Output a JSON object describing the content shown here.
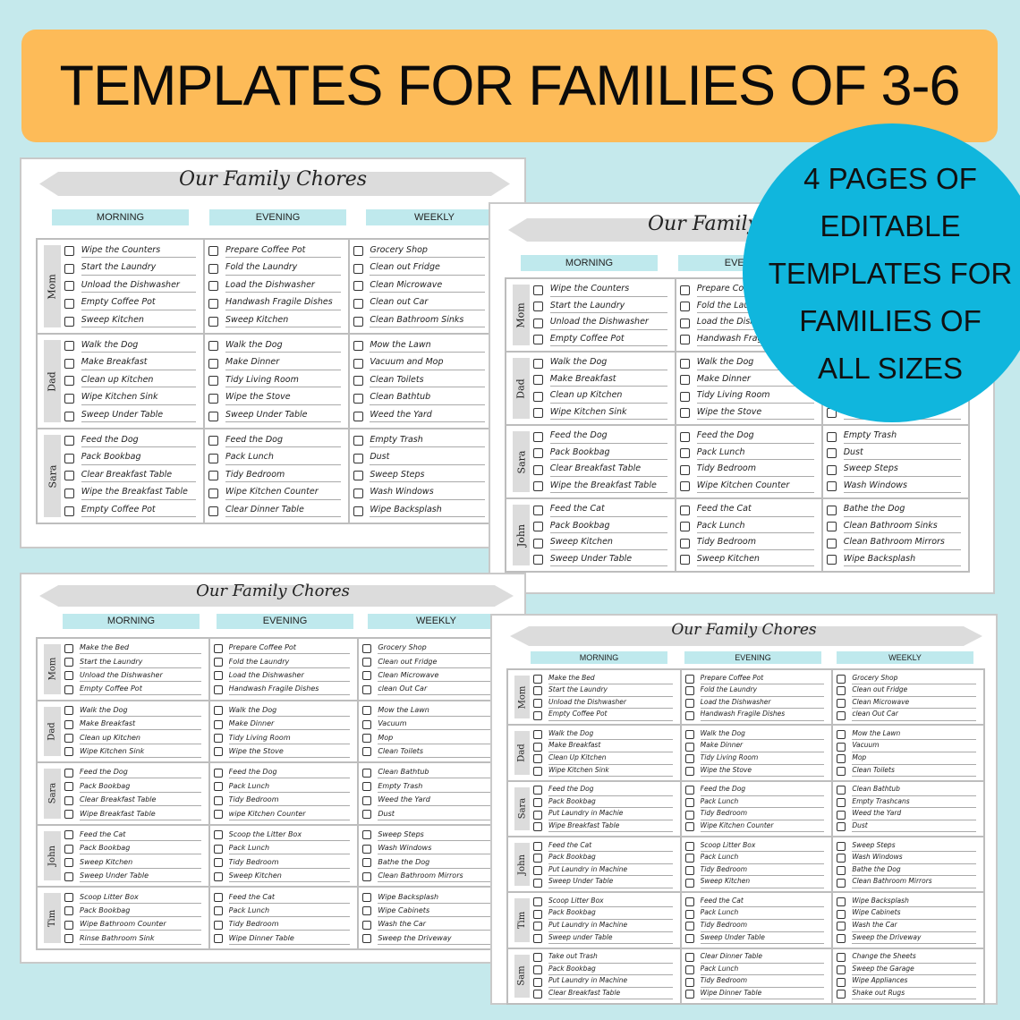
{
  "banner": {
    "text": "TEMPLATES FOR FAMILIES OF 3-6",
    "color": "#fdbb58"
  },
  "badge": {
    "lines": [
      "4 PAGES OF",
      "EDITABLE",
      "TEMPLATES FOR",
      "FAMILIES OF",
      "ALL SIZES"
    ],
    "color": "#10b6dd"
  },
  "columns": [
    "MORNING",
    "EVENING",
    "WEEKLY"
  ],
  "sheets": [
    {
      "title": "Our Family Chores",
      "rows": [
        {
          "name": "Mom",
          "morning": [
            "Wipe the Counters",
            "Start the Laundry",
            "Unload the Dishwasher",
            "Empty Coffee Pot",
            "Sweep Kitchen"
          ],
          "evening": [
            "Prepare Coffee Pot",
            "Fold the Laundry",
            "Load the Dishwasher",
            "Handwash Fragile Dishes",
            "Sweep Kitchen"
          ],
          "weekly": [
            "Grocery Shop",
            "Clean out Fridge",
            "Clean Microwave",
            "Clean out Car",
            "Clean Bathroom Sinks"
          ]
        },
        {
          "name": "Dad",
          "morning": [
            "Walk the Dog",
            "Make Breakfast",
            "Clean up Kitchen",
            "Wipe Kitchen Sink",
            "Sweep Under Table"
          ],
          "evening": [
            "Walk the Dog",
            "Make Dinner",
            "Tidy Living Room",
            "Wipe the Stove",
            "Sweep Under Table"
          ],
          "weekly": [
            "Mow the Lawn",
            "Vacuum and Mop",
            "Clean Toilets",
            "Clean Bathtub",
            "Weed the Yard"
          ]
        },
        {
          "name": "Sara",
          "morning": [
            "Feed the Dog",
            "Pack Bookbag",
            "Clear Breakfast Table",
            "Wipe the Breakfast Table",
            "Empty Coffee Pot"
          ],
          "evening": [
            "Feed the Dog",
            "Pack Lunch",
            "Tidy Bedroom",
            "Wipe Kitchen Counter",
            "Clear Dinner Table"
          ],
          "weekly": [
            "Empty Trash",
            "Dust",
            "Sweep Steps",
            "Wash Windows",
            "Wipe Backsplash"
          ]
        }
      ]
    },
    {
      "title": "Our Family Chores",
      "rows": [
        {
          "name": "Mom",
          "morning": [
            "Wipe the Counters",
            "Start the Laundry",
            "Unload the Dishwasher",
            "Empty Coffee Pot"
          ],
          "evening": [
            "Prepare Coffee Pot",
            "Fold the Laundry",
            "Load the Dishwasher",
            "Handwash Fragile Dishes"
          ],
          "weekly": []
        },
        {
          "name": "Dad",
          "morning": [
            "Walk the Dog",
            "Make Breakfast",
            "Clean up Kitchen",
            "Wipe Kitchen Sink"
          ],
          "evening": [
            "Walk the Dog",
            "Make Dinner",
            "Tidy Living Room",
            "Wipe the Stove"
          ],
          "weekly": []
        },
        {
          "name": "Sara",
          "morning": [
            "Feed the Dog",
            "Pack Bookbag",
            "Clear Breakfast Table",
            "Wipe the Breakfast Table"
          ],
          "evening": [
            "Feed the Dog",
            "Pack Lunch",
            "Tidy Bedroom",
            "Wipe Kitchen Counter"
          ],
          "weekly": [
            "Empty Trash",
            "Dust",
            "Sweep Steps",
            "Wash Windows"
          ]
        },
        {
          "name": "John",
          "morning": [
            "Feed the Cat",
            "Pack Bookbag",
            "Sweep Kitchen",
            "Sweep Under Table"
          ],
          "evening": [
            "Feed the Cat",
            "Pack Lunch",
            "Tidy Bedroom",
            "Sweep Kitchen"
          ],
          "weekly": [
            "Bathe the Dog",
            "Clean Bathroom Sinks",
            "Clean Bathroom Mirrors",
            "Wipe Backsplash"
          ]
        }
      ]
    },
    {
      "title": "Our Family Chores",
      "rows": [
        {
          "name": "Mom",
          "morning": [
            "Make the Bed",
            "Start the Laundry",
            "Unload the Dishwasher",
            "Empty Coffee Pot"
          ],
          "evening": [
            "Prepare Coffee Pot",
            "Fold the Laundry",
            "Load the Dishwasher",
            "Handwash Fragile Dishes"
          ],
          "weekly": [
            "Grocery Shop",
            "Clean out Fridge",
            "Clean Microwave",
            "clean Out Car"
          ]
        },
        {
          "name": "Dad",
          "morning": [
            "Walk the Dog",
            "Make Breakfast",
            "Clean up Kitchen",
            "Wipe Kitchen Sink"
          ],
          "evening": [
            "Walk the Dog",
            "Make Dinner",
            "Tidy Living Room",
            "Wipe the Stove"
          ],
          "weekly": [
            "Mow the Lawn",
            "Vacuum",
            "Mop",
            "Clean Toilets"
          ]
        },
        {
          "name": "Sara",
          "morning": [
            "Feed the Dog",
            "Pack Bookbag",
            "Clear Breakfast Table",
            "Wipe Breakfast Table"
          ],
          "evening": [
            "Feed the Dog",
            "Pack Lunch",
            "Tidy Bedroom",
            "wipe Kitchen Counter"
          ],
          "weekly": [
            "Clean Bathtub",
            "Empty Trash",
            "Weed the Yard",
            "Dust"
          ]
        },
        {
          "name": "John",
          "morning": [
            "Feed the Cat",
            "Pack Bookbag",
            "Sweep Kitchen",
            "Sweep Under Table"
          ],
          "evening": [
            "Scoop the Litter Box",
            "Pack Lunch",
            "Tidy Bedroom",
            "Sweep Kitchen"
          ],
          "weekly": [
            "Sweep Steps",
            "Wash Windows",
            "Bathe the Dog",
            "Clean Bathroom Mirrors"
          ]
        },
        {
          "name": "Tim",
          "morning": [
            "Scoop Litter Box",
            "Pack Bookbag",
            "Wipe Bathroom Counter",
            "Rinse Bathroom Sink"
          ],
          "evening": [
            "Feed the Cat",
            "Pack Lunch",
            "Tidy Bedroom",
            "Wipe Dinner Table"
          ],
          "weekly": [
            "Wipe Backsplash",
            "Wipe Cabinets",
            "Wash the Car",
            "Sweep the Driveway"
          ]
        }
      ]
    },
    {
      "title": "Our Family Chores",
      "rows": [
        {
          "name": "Mom",
          "morning": [
            "Make the Bed",
            "Start the Laundry",
            "Unload the Dishwasher",
            "Empty Coffee Pot"
          ],
          "evening": [
            "Prepare Coffee Pot",
            "Fold the Laundry",
            "Load the Dishwasher",
            "Handwash Fragile Dishes"
          ],
          "weekly": [
            "Grocery Shop",
            "Clean out Fridge",
            "Clean Microwave",
            "clean Out Car"
          ]
        },
        {
          "name": "Dad",
          "morning": [
            "Walk the Dog",
            "Make Breakfast",
            "Clean Up Kitchen",
            "Wipe Kitchen Sink"
          ],
          "evening": [
            "Walk the Dog",
            "Make Dinner",
            "Tidy Living Room",
            "Wipe the Stove"
          ],
          "weekly": [
            "Mow the Lawn",
            "Vacuum",
            "Mop",
            "Clean Toilets"
          ]
        },
        {
          "name": "Sara",
          "morning": [
            "Feed the Dog",
            "Pack Bookbag",
            "Put Laundry in Machie",
            "Wipe Breakfast Table"
          ],
          "evening": [
            "Feed the Dog",
            "Pack Lunch",
            "Tidy Bedroom",
            "Wipe Kitchen Counter"
          ],
          "weekly": [
            "Clean Bathtub",
            "Empty Trashcans",
            "Weed the Yard",
            "Dust"
          ]
        },
        {
          "name": "John",
          "morning": [
            "Feed the Cat",
            "Pack Bookbag",
            "Put Laundry in Machine",
            "Sweep Under Table"
          ],
          "evening": [
            "Scoop Litter Box",
            "Pack Lunch",
            "Tidy Bedroom",
            "Sweep Kitchen"
          ],
          "weekly": [
            "Sweep Steps",
            "Wash Windows",
            "Bathe the Dog",
            "Clean Bathroom Mirrors"
          ]
        },
        {
          "name": "Tim",
          "morning": [
            "Scoop Litter Box",
            "Pack Bookbag",
            "Put Laundry in Machine",
            "Sweep under Table"
          ],
          "evening": [
            "Feed the Cat",
            "Pack Lunch",
            "Tidy Bedroom",
            "Sweep Under Table"
          ],
          "weekly": [
            "Wipe Backsplash",
            "Wipe Cabinets",
            "Wash the Car",
            "Sweep the Driveway"
          ]
        },
        {
          "name": "Sam",
          "morning": [
            "Take out Trash",
            "Pack Bookbag",
            "Put Laundry in Machine",
            "Clear Breakfast Table"
          ],
          "evening": [
            "Clear Dinner Table",
            "Pack Lunch",
            "Tidy Bedroom",
            "Wipe Dinner Table"
          ],
          "weekly": [
            "Change the Sheets",
            "Sweep the Garage",
            "Wipe Appliances",
            "Shake out Rugs"
          ]
        }
      ]
    }
  ]
}
